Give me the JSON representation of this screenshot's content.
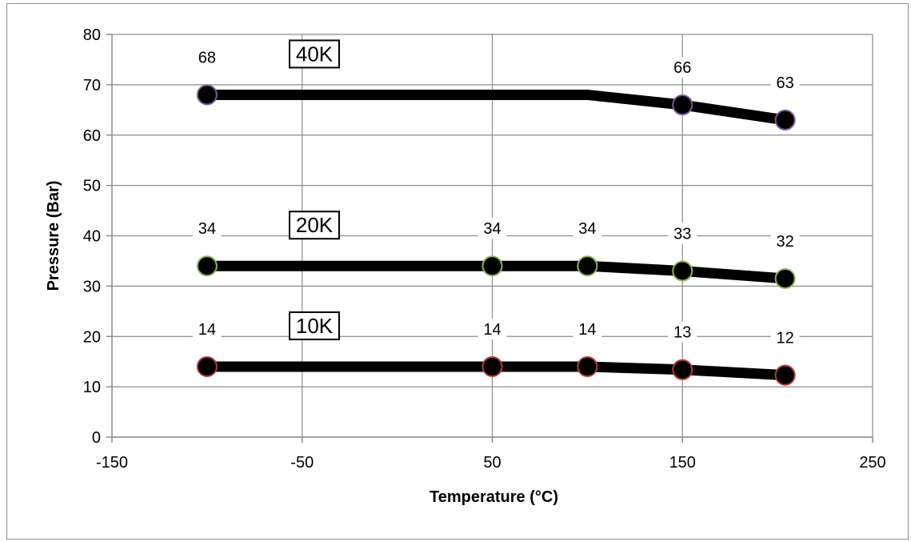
{
  "chart_data": {
    "type": "line",
    "title": "",
    "xlabel": "Temperature (°C)",
    "ylabel": "Pressure (Bar)",
    "xlim": [
      -150,
      250
    ],
    "ylim": [
      0,
      80
    ],
    "xticks": [
      -150,
      -50,
      50,
      150,
      250
    ],
    "yticks": [
      0,
      10,
      20,
      30,
      40,
      50,
      60,
      70,
      80
    ],
    "grid": true,
    "legend": "none",
    "series": [
      {
        "name": "40K",
        "marker_edge": "#7a5c99",
        "points": [
          {
            "x": -100,
            "y": 68,
            "label": "68",
            "marker": true
          },
          {
            "x": 100,
            "y": 68,
            "label": "",
            "marker": false
          },
          {
            "x": 150,
            "y": 66,
            "label": "66",
            "marker": true
          },
          {
            "x": 204,
            "y": 63,
            "label": "63",
            "marker": true
          }
        ]
      },
      {
        "name": "20K",
        "marker_edge": "#8fb35a",
        "points": [
          {
            "x": -100,
            "y": 34,
            "label": "34",
            "marker": true
          },
          {
            "x": 50,
            "y": 34,
            "label": "34",
            "marker": true
          },
          {
            "x": 100,
            "y": 34,
            "label": "34",
            "marker": true
          },
          {
            "x": 150,
            "y": 33,
            "label": "33",
            "marker": true
          },
          {
            "x": 204,
            "y": 31.5,
            "label": "32",
            "marker": true
          }
        ]
      },
      {
        "name": "10K",
        "marker_edge": "#b23b3b",
        "points": [
          {
            "x": -100,
            "y": 14,
            "label": "14",
            "marker": true
          },
          {
            "x": 50,
            "y": 14,
            "label": "14",
            "marker": true
          },
          {
            "x": 100,
            "y": 14,
            "label": "14",
            "marker": true
          },
          {
            "x": 150,
            "y": 13.4,
            "label": "13",
            "marker": true
          },
          {
            "x": 204,
            "y": 12.3,
            "label": "12",
            "marker": true
          }
        ]
      }
    ]
  }
}
